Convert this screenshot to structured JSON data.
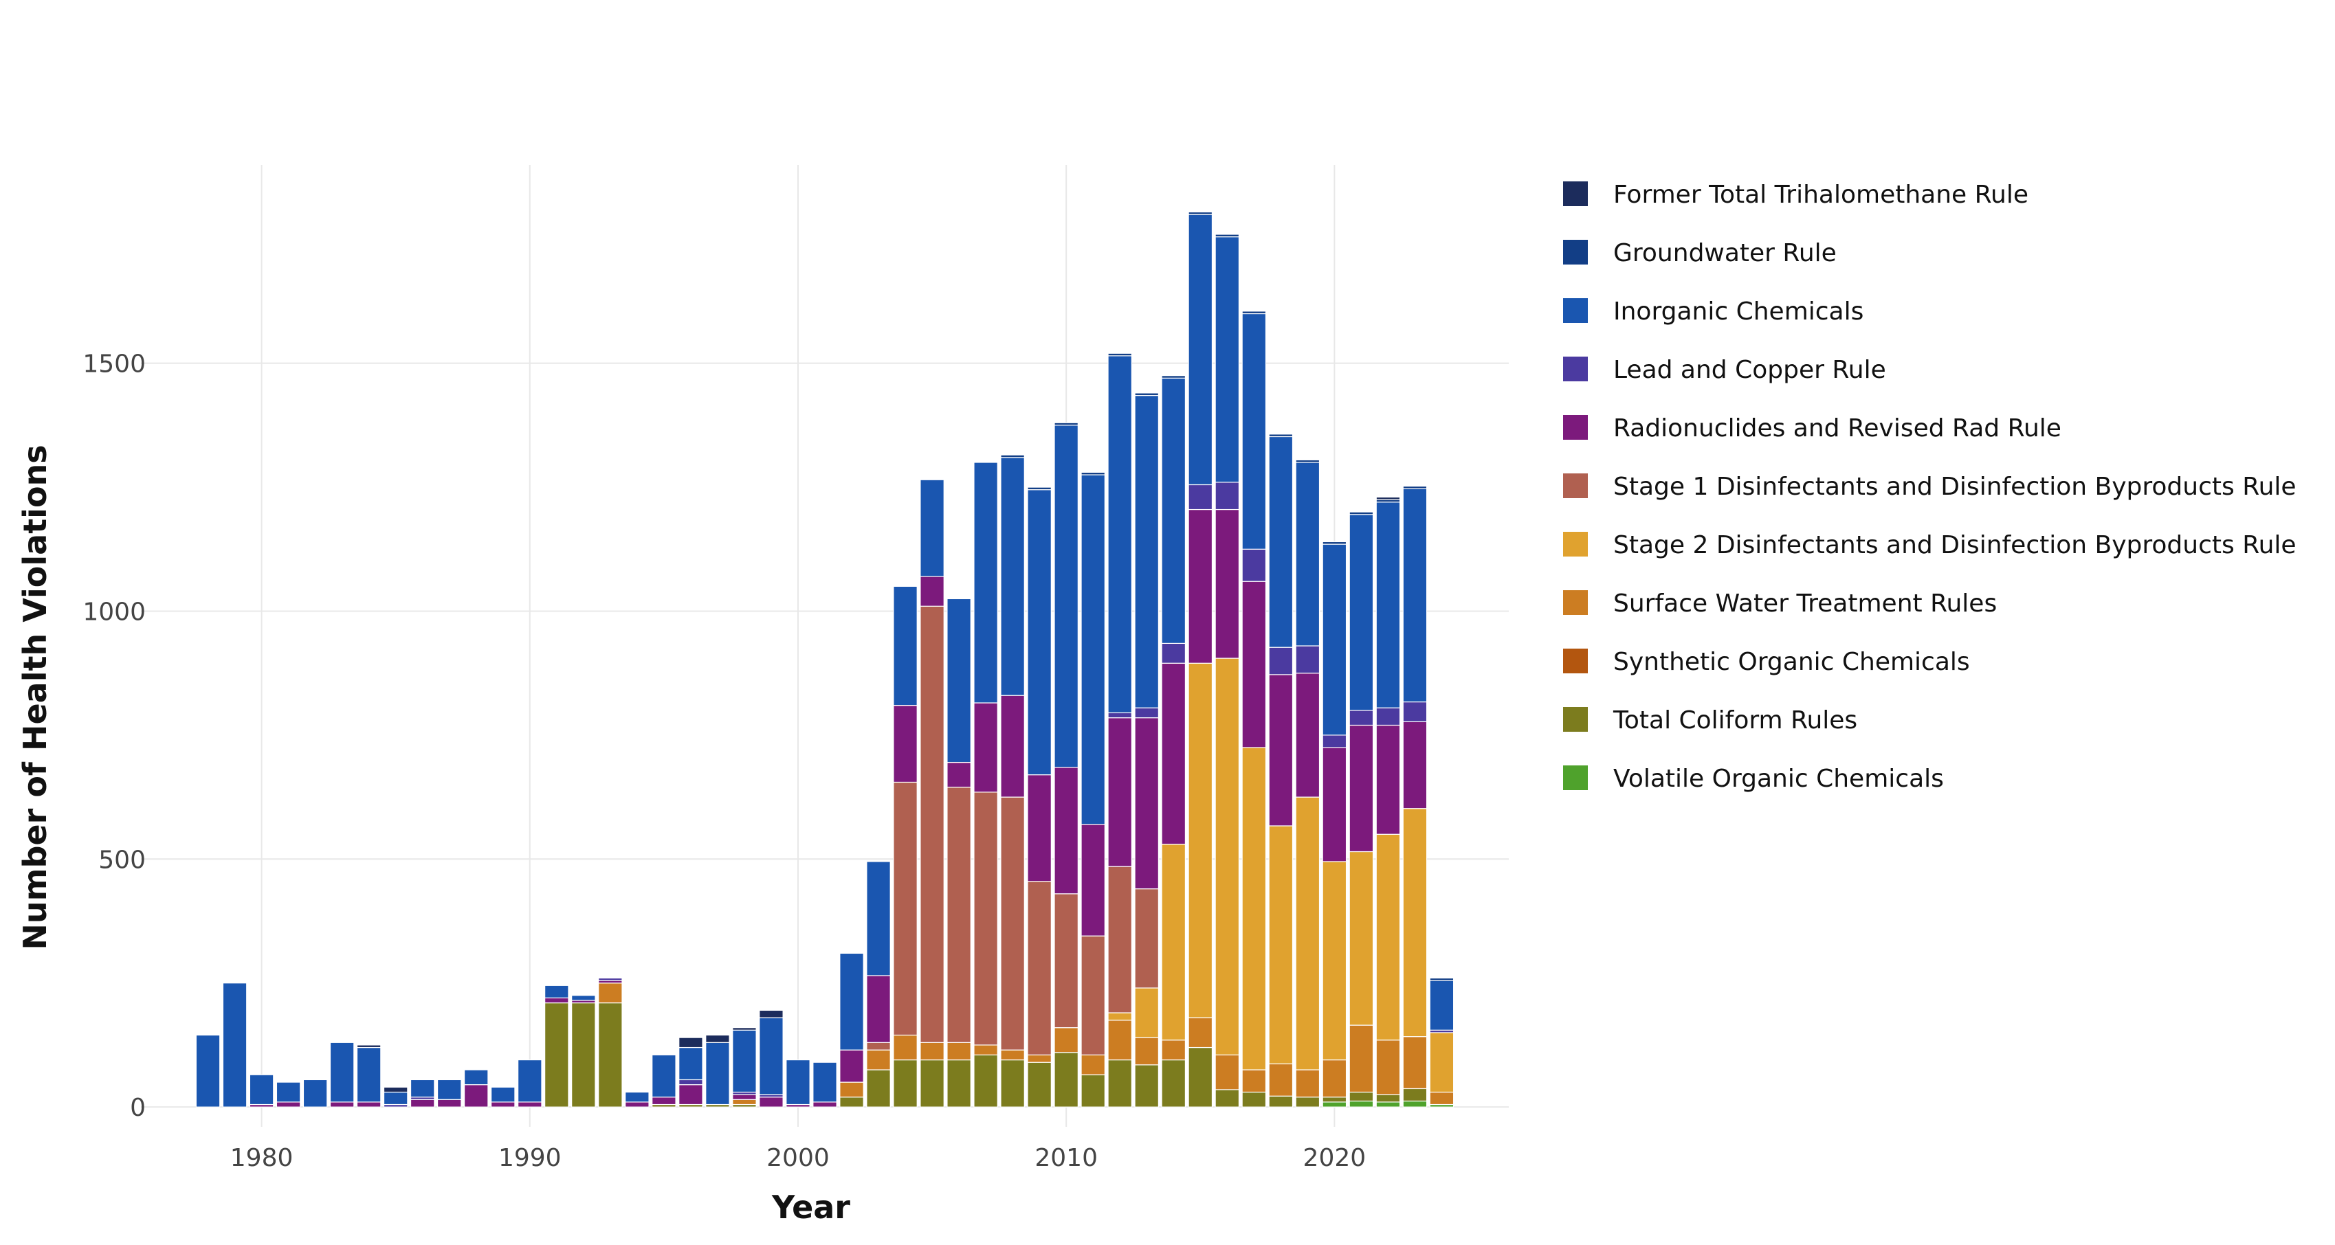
{
  "chart_data": {
    "type": "bar",
    "stacked": true,
    "xlabel": "Year",
    "ylabel": "Number of Health Violations",
    "xlim": [
      1975.5,
      2026.5
    ],
    "ylim": [
      -40,
      1900
    ],
    "xticks": [
      1980,
      1990,
      2000,
      2010,
      2020
    ],
    "yticks": [
      0,
      500,
      1000,
      1500
    ],
    "grid": true,
    "legend_position": "right",
    "x": [
      1978,
      1979,
      1980,
      1981,
      1982,
      1983,
      1984,
      1985,
      1986,
      1987,
      1988,
      1989,
      1990,
      1991,
      1992,
      1993,
      1994,
      1995,
      1996,
      1997,
      1998,
      1999,
      2000,
      2001,
      2002,
      2003,
      2004,
      2005,
      2006,
      2007,
      2008,
      2009,
      2010,
      2011,
      2012,
      2013,
      2014,
      2015,
      2016,
      2017,
      2018,
      2019,
      2020,
      2021,
      2022,
      2023,
      2024
    ],
    "series": [
      {
        "name": "Volatile Organic Chemicals",
        "color": "#4fa22c",
        "values": [
          0,
          0,
          0,
          0,
          0,
          0,
          0,
          0,
          0,
          0,
          0,
          0,
          0,
          0,
          0,
          0,
          0,
          0,
          0,
          0,
          0,
          0,
          0,
          0,
          0,
          0,
          0,
          0,
          0,
          0,
          0,
          0,
          0,
          0,
          0,
          0,
          0,
          0,
          0,
          0,
          0,
          0,
          10,
          12,
          10,
          12,
          5
        ]
      },
      {
        "name": "Total Coliform Rules",
        "color": "#7c7c1e",
        "values": [
          0,
          0,
          0,
          0,
          0,
          0,
          0,
          0,
          0,
          0,
          0,
          0,
          0,
          210,
          210,
          210,
          0,
          5,
          5,
          5,
          5,
          0,
          0,
          0,
          20,
          75,
          95,
          95,
          95,
          105,
          95,
          90,
          110,
          65,
          95,
          85,
          95,
          120,
          35,
          30,
          22,
          20,
          10,
          18,
          15,
          25,
          0
        ]
      },
      {
        "name": "Synthetic Organic Chemicals",
        "color": "#b3560f",
        "values": [
          0,
          0,
          0,
          0,
          0,
          0,
          0,
          0,
          0,
          0,
          0,
          0,
          0,
          0,
          0,
          0,
          0,
          0,
          0,
          0,
          0,
          0,
          0,
          0,
          0,
          0,
          0,
          0,
          0,
          0,
          0,
          0,
          0,
          0,
          0,
          0,
          0,
          0,
          0,
          0,
          0,
          0,
          0,
          0,
          0,
          0,
          0
        ]
      },
      {
        "name": "Surface Water Treatment Rules",
        "color": "#cc7d22",
        "values": [
          0,
          0,
          0,
          0,
          0,
          0,
          0,
          0,
          0,
          0,
          0,
          0,
          0,
          0,
          0,
          40,
          0,
          0,
          0,
          0,
          10,
          0,
          0,
          0,
          30,
          40,
          50,
          35,
          35,
          20,
          20,
          15,
          50,
          40,
          80,
          55,
          40,
          60,
          70,
          45,
          65,
          55,
          75,
          135,
          110,
          105,
          25
        ]
      },
      {
        "name": "Stage 2 Disinfectants and Disinfection Byproducts Rule",
        "color": "#e0a22f",
        "values": [
          0,
          0,
          0,
          0,
          0,
          0,
          0,
          0,
          0,
          0,
          0,
          0,
          0,
          0,
          0,
          0,
          0,
          0,
          0,
          0,
          0,
          0,
          0,
          0,
          0,
          0,
          0,
          0,
          0,
          0,
          0,
          0,
          0,
          0,
          15,
          100,
          395,
          715,
          800,
          650,
          480,
          550,
          400,
          350,
          415,
          460,
          120
        ]
      },
      {
        "name": "Stage 1 Disinfectants and Disinfection Byproducts Rule",
        "color": "#b06050",
        "values": [
          0,
          0,
          0,
          0,
          0,
          0,
          0,
          0,
          0,
          0,
          0,
          0,
          0,
          0,
          0,
          0,
          0,
          0,
          0,
          0,
          0,
          0,
          0,
          0,
          0,
          15,
          510,
          880,
          515,
          510,
          510,
          350,
          270,
          240,
          295,
          200,
          0,
          0,
          0,
          0,
          0,
          0,
          0,
          0,
          0,
          0,
          0
        ]
      },
      {
        "name": "Radionuclides and Revised Rad Rule",
        "color": "#7c1a7c",
        "values": [
          0,
          0,
          5,
          10,
          0,
          10,
          10,
          0,
          15,
          15,
          45,
          10,
          10,
          10,
          5,
          5,
          10,
          15,
          40,
          0,
          10,
          20,
          5,
          10,
          65,
          135,
          155,
          60,
          50,
          180,
          205,
          215,
          255,
          225,
          300,
          345,
          365,
          310,
          300,
          335,
          305,
          250,
          230,
          255,
          220,
          175,
          0
        ]
      },
      {
        "name": "Lead and Copper Rule",
        "color": "#4b3aa0",
        "values": [
          0,
          0,
          0,
          0,
          0,
          0,
          0,
          5,
          5,
          0,
          0,
          0,
          0,
          0,
          0,
          5,
          0,
          0,
          10,
          0,
          5,
          5,
          0,
          0,
          0,
          0,
          0,
          0,
          0,
          0,
          0,
          0,
          0,
          0,
          10,
          20,
          40,
          50,
          55,
          65,
          55,
          55,
          25,
          30,
          35,
          40,
          5
        ]
      },
      {
        "name": "Inorganic Chemicals",
        "color": "#1a56b0",
        "values": [
          145,
          250,
          60,
          40,
          55,
          120,
          110,
          25,
          35,
          40,
          30,
          30,
          85,
          25,
          10,
          0,
          20,
          85,
          65,
          125,
          125,
          155,
          90,
          80,
          195,
          230,
          240,
          195,
          330,
          485,
          480,
          575,
          690,
          705,
          720,
          630,
          535,
          545,
          495,
          475,
          425,
          370,
          385,
          395,
          415,
          430,
          100
        ]
      },
      {
        "name": "Groundwater Rule",
        "color": "#123e86",
        "values": [
          0,
          0,
          0,
          0,
          0,
          0,
          0,
          0,
          0,
          0,
          0,
          0,
          0,
          0,
          0,
          0,
          0,
          0,
          0,
          0,
          0,
          0,
          0,
          0,
          0,
          0,
          0,
          0,
          0,
          0,
          5,
          5,
          5,
          5,
          5,
          5,
          5,
          5,
          5,
          5,
          5,
          5,
          5,
          5,
          5,
          5,
          5
        ]
      },
      {
        "name": "Former Total Trihalomethane Rule",
        "color": "#1c2c5c",
        "values": [
          0,
          0,
          0,
          0,
          0,
          0,
          5,
          10,
          0,
          0,
          0,
          0,
          0,
          0,
          0,
          0,
          0,
          0,
          20,
          15,
          5,
          15,
          0,
          0,
          0,
          0,
          0,
          0,
          0,
          0,
          0,
          0,
          0,
          0,
          0,
          0,
          0,
          0,
          0,
          0,
          0,
          0,
          0,
          0,
          5,
          0,
          0
        ]
      }
    ]
  }
}
